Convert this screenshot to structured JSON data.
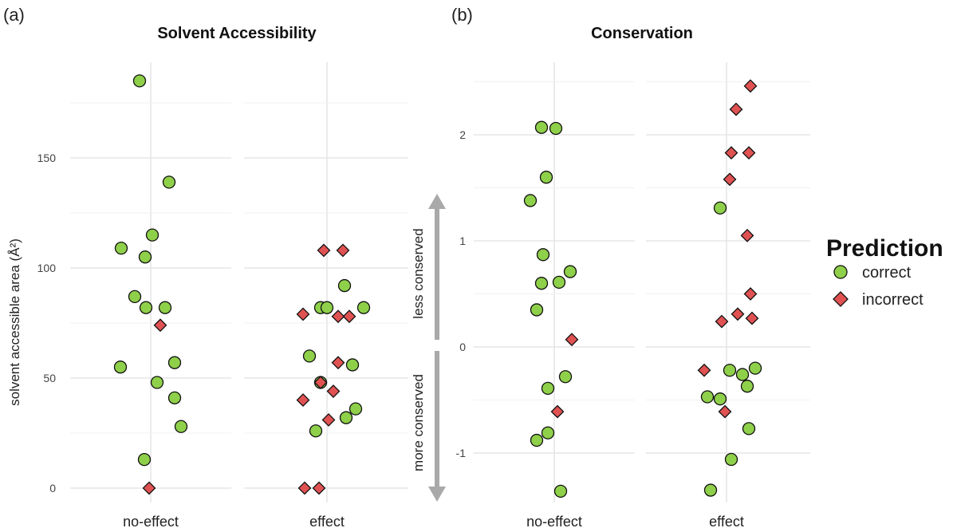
{
  "panels": {
    "a": {
      "tag": "(a)"
    },
    "b": {
      "tag": "(b)"
    }
  },
  "arrows": {
    "up_label": "less conserved",
    "down_label": "more conserved"
  },
  "legend": {
    "title": "Prediction",
    "items": [
      {
        "label": "correct",
        "shape": "circle",
        "color": "#8fd04a"
      },
      {
        "label": "incorrect",
        "shape": "diamond",
        "color": "#e05252"
      }
    ]
  },
  "chart_data": [
    {
      "type": "scatter",
      "title": "Solvent Accessibility",
      "ylabel": "solvent accessible area (Å²)",
      "xlabel": "",
      "categories": [
        "no-effect",
        "effect"
      ],
      "yticks": [
        0,
        50,
        100,
        150
      ],
      "ylim": [
        -5,
        188
      ],
      "grid": true,
      "series": [
        {
          "name": "correct",
          "values": [
            {
              "category": "no-effect",
              "y": 185
            },
            {
              "category": "no-effect",
              "y": 139
            },
            {
              "category": "no-effect",
              "y": 115
            },
            {
              "category": "no-effect",
              "y": 109
            },
            {
              "category": "no-effect",
              "y": 105
            },
            {
              "category": "no-effect",
              "y": 87
            },
            {
              "category": "no-effect",
              "y": 82
            },
            {
              "category": "no-effect",
              "y": 82
            },
            {
              "category": "no-effect",
              "y": 57
            },
            {
              "category": "no-effect",
              "y": 55
            },
            {
              "category": "no-effect",
              "y": 48
            },
            {
              "category": "no-effect",
              "y": 41
            },
            {
              "category": "no-effect",
              "y": 28
            },
            {
              "category": "no-effect",
              "y": 13
            },
            {
              "category": "effect",
              "y": 92
            },
            {
              "category": "effect",
              "y": 82
            },
            {
              "category": "effect",
              "y": 82
            },
            {
              "category": "effect",
              "y": 82
            },
            {
              "category": "effect",
              "y": 60
            },
            {
              "category": "effect",
              "y": 56
            },
            {
              "category": "effect",
              "y": 48
            },
            {
              "category": "effect",
              "y": 36
            },
            {
              "category": "effect",
              "y": 32
            },
            {
              "category": "effect",
              "y": 26
            }
          ]
        },
        {
          "name": "incorrect",
          "values": [
            {
              "category": "no-effect",
              "y": 74
            },
            {
              "category": "no-effect",
              "y": 0
            },
            {
              "category": "effect",
              "y": 108
            },
            {
              "category": "effect",
              "y": 108
            },
            {
              "category": "effect",
              "y": 79
            },
            {
              "category": "effect",
              "y": 78
            },
            {
              "category": "effect",
              "y": 78
            },
            {
              "category": "effect",
              "y": 57
            },
            {
              "category": "effect",
              "y": 48
            },
            {
              "category": "effect",
              "y": 44
            },
            {
              "category": "effect",
              "y": 40
            },
            {
              "category": "effect",
              "y": 31
            },
            {
              "category": "effect",
              "y": 0
            },
            {
              "category": "effect",
              "y": 0
            }
          ]
        }
      ]
    },
    {
      "type": "scatter",
      "title": "Conservation",
      "ylabel": "",
      "xlabel": "",
      "categories": [
        "no-effect",
        "effect"
      ],
      "yticks": [
        -1,
        0,
        1,
        2
      ],
      "ylim": [
        -1.5,
        2.55
      ],
      "grid": true,
      "series": [
        {
          "name": "correct",
          "values": [
            {
              "category": "no-effect",
              "y": 2.07
            },
            {
              "category": "no-effect",
              "y": 2.06
            },
            {
              "category": "no-effect",
              "y": 1.6
            },
            {
              "category": "no-effect",
              "y": 1.38
            },
            {
              "category": "no-effect",
              "y": 0.87
            },
            {
              "category": "no-effect",
              "y": 0.71
            },
            {
              "category": "no-effect",
              "y": 0.61
            },
            {
              "category": "no-effect",
              "y": 0.6
            },
            {
              "category": "no-effect",
              "y": 0.35
            },
            {
              "category": "no-effect",
              "y": -0.28
            },
            {
              "category": "no-effect",
              "y": -0.39
            },
            {
              "category": "no-effect",
              "y": -0.81
            },
            {
              "category": "no-effect",
              "y": -0.88
            },
            {
              "category": "no-effect",
              "y": -1.36
            },
            {
              "category": "effect",
              "y": 1.31
            },
            {
              "category": "effect",
              "y": -0.2
            },
            {
              "category": "effect",
              "y": -0.22
            },
            {
              "category": "effect",
              "y": -0.26
            },
            {
              "category": "effect",
              "y": -0.37
            },
            {
              "category": "effect",
              "y": -0.47
            },
            {
              "category": "effect",
              "y": -0.49
            },
            {
              "category": "effect",
              "y": -0.77
            },
            {
              "category": "effect",
              "y": -1.06
            },
            {
              "category": "effect",
              "y": -1.35
            }
          ]
        },
        {
          "name": "incorrect",
          "values": [
            {
              "category": "no-effect",
              "y": 0.07
            },
            {
              "category": "no-effect",
              "y": -0.61
            },
            {
              "category": "effect",
              "y": 2.46
            },
            {
              "category": "effect",
              "y": 2.24
            },
            {
              "category": "effect",
              "y": 1.83
            },
            {
              "category": "effect",
              "y": 1.83
            },
            {
              "category": "effect",
              "y": 1.58
            },
            {
              "category": "effect",
              "y": 1.05
            },
            {
              "category": "effect",
              "y": 0.5
            },
            {
              "category": "effect",
              "y": 0.31
            },
            {
              "category": "effect",
              "y": 0.27
            },
            {
              "category": "effect",
              "y": 0.24
            },
            {
              "category": "effect",
              "y": -0.22
            },
            {
              "category": "effect",
              "y": -0.61
            }
          ]
        }
      ]
    }
  ]
}
